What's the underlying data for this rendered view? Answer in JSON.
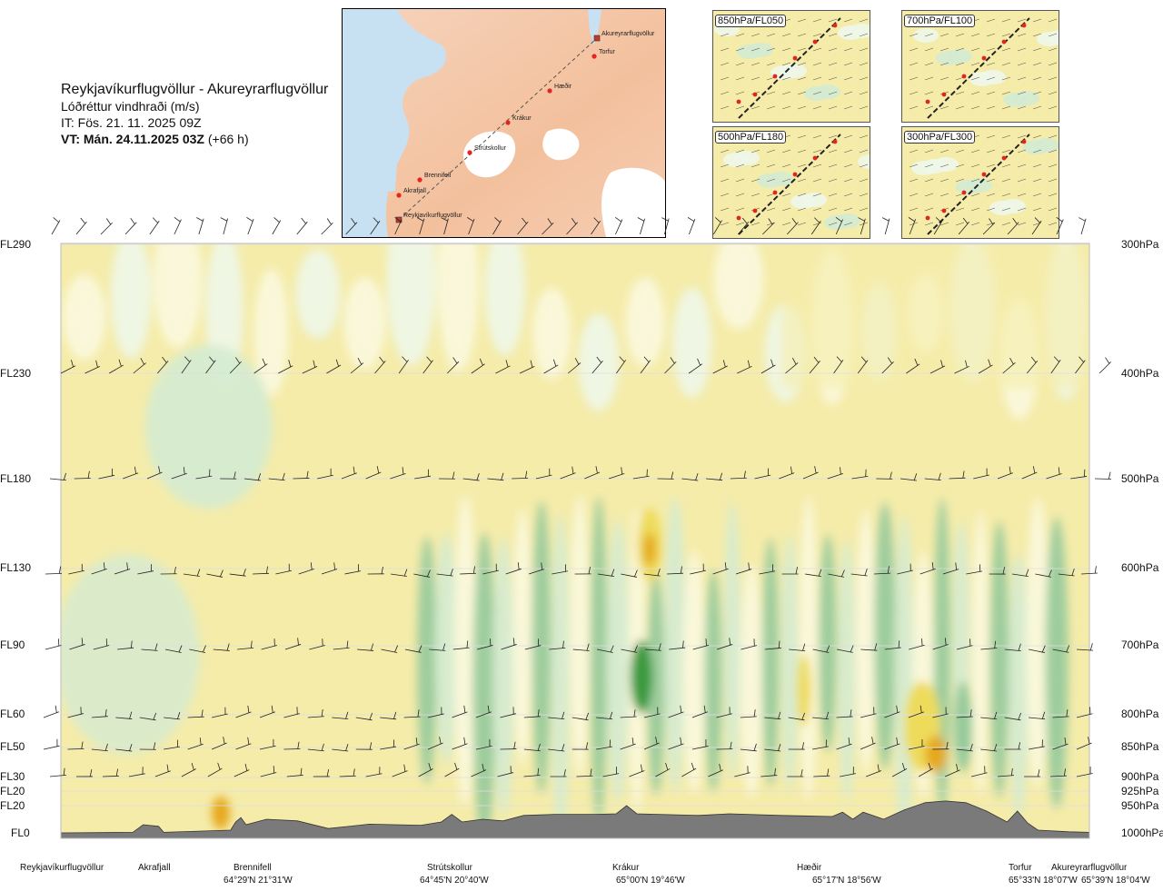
{
  "header": {
    "title": "Reykjavíkurflugvöllur - Akureyrarflugvöllur",
    "subtitle": "Lóðréttur vindhraði (m/s)",
    "issue_time": "IT: Fös. 21. 11. 2025 09Z",
    "valid_time_bold": "VT: Mán. 24.11.2025 03Z",
    "valid_time_offset": " (+66 h)"
  },
  "route_map": {
    "waypoints": [
      {
        "name": "Akureyrarflugvöllur"
      },
      {
        "name": "Torfur"
      },
      {
        "name": "Hæðir"
      },
      {
        "name": "Krákur"
      },
      {
        "name": "Strútskollur"
      },
      {
        "name": "Brennifell"
      },
      {
        "name": "Akrafjall"
      },
      {
        "name": "Reykjavíkurflugvöllur"
      }
    ]
  },
  "level_maps": [
    {
      "label": "850hPa/FL050"
    },
    {
      "label": "700hPa/FL100"
    },
    {
      "label": "500hPa/FL180"
    },
    {
      "label": "300hPa/FL300"
    }
  ],
  "levels": [
    {
      "fl": "FL290",
      "hpa": "300hPa"
    },
    {
      "fl": "FL230",
      "hpa": "400hPa"
    },
    {
      "fl": "FL180",
      "hpa": "500hPa"
    },
    {
      "fl": "FL130",
      "hpa": "600hPa"
    },
    {
      "fl": "FL90",
      "hpa": "700hPa"
    },
    {
      "fl": "FL60",
      "hpa": "800hPa"
    },
    {
      "fl": "FL50",
      "hpa": "850hPa"
    },
    {
      "fl": "FL30",
      "hpa": "900hPa"
    },
    {
      "fl": "FL20",
      "hpa": "925hPa"
    },
    {
      "fl": "FL20",
      "hpa": "950hPa"
    },
    {
      "fl": "FL0",
      "hpa": "1000hPa"
    }
  ],
  "locations": [
    {
      "name": "Reykjavíkurflugvöllur",
      "coord": ""
    },
    {
      "name": "Akrafjall",
      "coord": ""
    },
    {
      "name": "Brennifell",
      "coord": "64°29'N 21°31'W"
    },
    {
      "name": "Strútskollur",
      "coord": "64°45'N 20°40'W"
    },
    {
      "name": "Krákur",
      "coord": "65°00'N 19°46'W"
    },
    {
      "name": "Hæðir",
      "coord": "65°17'N 18°56'W"
    },
    {
      "name": "Torfur",
      "coord": "65°33'N 18°07'W"
    },
    {
      "name": "Akureyrarflugvöllur",
      "coord": "65°39'N 18°04'W"
    }
  ],
  "chart_data": {
    "type": "heatmap",
    "title": "Reykjavíkurflugvöllur - Akureyrarflugvöllur",
    "variable": "Lóðréttur vindhraði (m/s)",
    "y_levels_hpa": [
      300,
      400,
      500,
      600,
      700,
      800,
      850,
      900,
      925,
      950,
      1000
    ],
    "x_locations": [
      "Reykjavíkurflugvöllur",
      "Akrafjall",
      "Brennifell",
      "Strútskollur",
      "Krákur",
      "Hæðir",
      "Torfur",
      "Akureyrarflugvöllur"
    ],
    "colors": {
      "strong_sink": "#3a9a3e",
      "sink": "#94c99b",
      "weak_sink": "#d4ebd2",
      "very_weak_sink": "#eef7e9",
      "neutral": "#fbf8df",
      "weak_lift": "#f5ecaa",
      "lift": "#eedb5a",
      "strong_lift": "#e6a81c",
      "terrain": "#7a7a7a"
    },
    "terrain_profile_hpa": [
      [
        0,
        1000
      ],
      [
        0.07,
        999
      ],
      [
        0.08,
        985
      ],
      [
        0.095,
        988
      ],
      [
        0.1,
        999
      ],
      [
        0.165,
        995
      ],
      [
        0.17,
        980
      ],
      [
        0.175,
        972
      ],
      [
        0.18,
        985
      ],
      [
        0.2,
        975
      ],
      [
        0.23,
        978
      ],
      [
        0.26,
        992
      ],
      [
        0.3,
        984
      ],
      [
        0.35,
        986
      ],
      [
        0.37,
        980
      ],
      [
        0.38,
        966
      ],
      [
        0.39,
        980
      ],
      [
        0.41,
        975
      ],
      [
        0.43,
        978
      ],
      [
        0.45,
        968
      ],
      [
        0.48,
        966
      ],
      [
        0.52,
        966
      ],
      [
        0.54,
        965
      ],
      [
        0.55,
        950
      ],
      [
        0.56,
        965
      ],
      [
        0.62,
        968
      ],
      [
        0.65,
        965
      ],
      [
        0.7,
        968
      ],
      [
        0.75,
        970
      ],
      [
        0.76,
        962
      ],
      [
        0.77,
        975
      ],
      [
        0.78,
        962
      ],
      [
        0.8,
        975
      ],
      [
        0.82,
        958
      ],
      [
        0.84,
        945
      ],
      [
        0.86,
        942
      ],
      [
        0.88,
        945
      ],
      [
        0.9,
        960
      ],
      [
        0.91,
        970
      ],
      [
        0.92,
        980
      ],
      [
        0.93,
        960
      ],
      [
        0.94,
        982
      ],
      [
        0.95,
        995
      ],
      [
        0.98,
        998
      ],
      [
        1,
        999
      ]
    ]
  }
}
